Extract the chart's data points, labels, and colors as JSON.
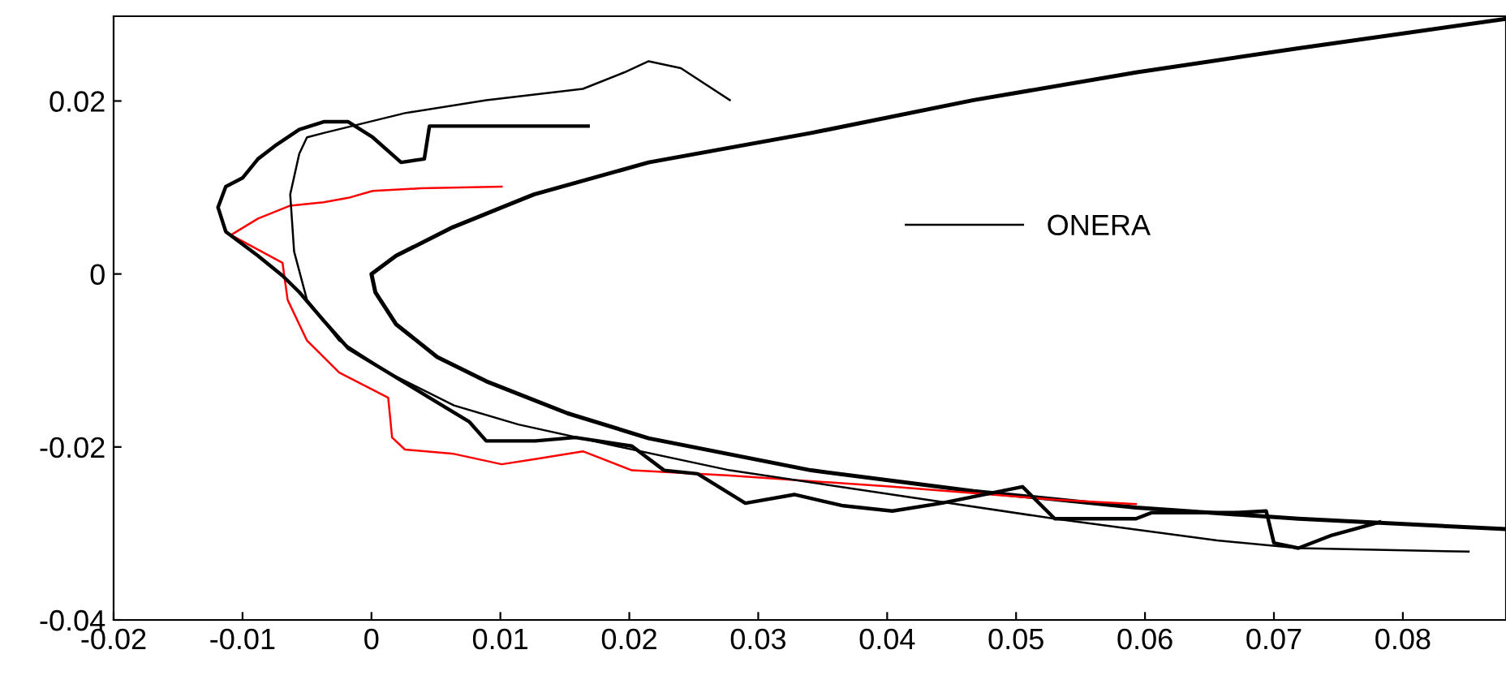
{
  "chart_data": {
    "type": "line",
    "xlim": [
      -0.02,
      0.088
    ],
    "ylim": [
      -0.04,
      0.0298
    ],
    "xticks": [
      -0.02,
      -0.01,
      0,
      0.01,
      0.02,
      0.03,
      0.04,
      0.05,
      0.06,
      0.07,
      0.08
    ],
    "yticks": [
      -0.04,
      -0.02,
      0,
      0.02
    ],
    "grid": false,
    "legend": "right",
    "marker": "none",
    "line_style": "solid",
    "series": [
      {
        "color": "#000000",
        "x": [
          0.088,
          0.0719,
          0.0593,
          0.0467,
          0.0341,
          0.0215,
          0.0126,
          0.0063,
          0.0019,
          0.0,
          0.0003,
          0.0019,
          0.0051,
          0.0089,
          0.0152,
          0.0215,
          0.0341,
          0.0467,
          0.0593,
          0.0719,
          0.088
        ],
        "values": [
          0.0295,
          0.0261,
          0.0233,
          0.0201,
          0.0163,
          0.0129,
          0.0092,
          0.0054,
          0.0021,
          0,
          -0.0021,
          -0.0058,
          -0.0096,
          -0.0124,
          -0.0161,
          -0.019,
          -0.0227,
          -0.0251,
          -0.027,
          -0.0283,
          -0.0295
        ]
      },
      {
        "color": "#ff0000",
        "x": [
          0.0101,
          0.0038,
          0.0001,
          -0.0018,
          -0.0037,
          -0.0063,
          -0.0088,
          -0.0109,
          -0.0069,
          -0.0065,
          -0.005,
          -0.0025,
          0.0013,
          0.0016,
          0.0026,
          0.0064,
          0.0101,
          0.0127,
          0.0164,
          0.0202,
          0.0278,
          0.0404,
          0.053,
          0.0593
        ],
        "values": [
          0.0101,
          0.0099,
          0.0096,
          0.0088,
          0.0083,
          0.0079,
          0.0064,
          0.0045,
          0.0013,
          -0.003,
          -0.0077,
          -0.0114,
          -0.0143,
          -0.0189,
          -0.0203,
          -0.0208,
          -0.022,
          -0.0214,
          -0.0205,
          -0.0227,
          -0.0233,
          -0.0246,
          -0.0261,
          -0.0266
        ]
      },
      {
        "color": "#000000",
        "x": [
          0.0168,
          0.0101,
          0.0045,
          0.0041,
          0.0023,
          0.0001,
          -0.0018,
          -0.0037,
          -0.0056,
          -0.0075,
          -0.0088,
          -0.01,
          -0.0113,
          -0.0119,
          -0.0113,
          -0.0088,
          -0.0069,
          -0.0056,
          -0.0037,
          -0.0018,
          0.0013,
          0.0045,
          0.0076,
          0.0089,
          0.0127,
          0.0158,
          0.0202,
          0.0227,
          0.0253,
          0.029,
          0.0328,
          0.0366,
          0.0404,
          0.0442,
          0.0505,
          0.053,
          0.0593,
          0.0605,
          0.0669,
          0.0694,
          0.07,
          0.0719,
          0.0745,
          0.0782
        ],
        "values": [
          0.0171,
          0.0171,
          0.0171,
          0.0133,
          0.0129,
          0.0158,
          0.0176,
          0.0176,
          0.0167,
          0.0148,
          0.0133,
          0.0111,
          0.0101,
          0.0077,
          0.0049,
          0.0021,
          -0.0002,
          -0.0021,
          -0.0054,
          -0.0086,
          -0.0114,
          -0.0143,
          -0.0171,
          -0.0193,
          -0.0193,
          -0.0189,
          -0.0199,
          -0.0227,
          -0.0231,
          -0.0265,
          -0.0255,
          -0.0268,
          -0.0274,
          -0.0265,
          -0.0246,
          -0.0283,
          -0.0283,
          -0.0276,
          -0.0276,
          -0.0274,
          -0.0311,
          -0.0317,
          -0.0302,
          -0.0287
        ]
      },
      {
        "name": "ONERA",
        "color": "#000000",
        "x": [
          0.0278,
          0.024,
          0.0215,
          0.0196,
          0.0164,
          0.0089,
          0.0026,
          -0.0037,
          -0.005,
          -0.0056,
          -0.0063,
          -0.006,
          -0.005,
          -0.0025,
          0.0013,
          0.0064,
          0.0114,
          0.019,
          0.0278,
          0.0404,
          0.053,
          0.0656,
          0.0719,
          0.0851
        ],
        "values": [
          0.0201,
          0.0238,
          0.0246,
          0.0233,
          0.0214,
          0.0201,
          0.0186,
          0.0163,
          0.0158,
          0.0139,
          0.0092,
          0.0026,
          -0.003,
          -0.0077,
          -0.0114,
          -0.0152,
          -0.0174,
          -0.0199,
          -0.0227,
          -0.0255,
          -0.0283,
          -0.0308,
          -0.0317,
          -0.0321
        ]
      }
    ]
  }
}
